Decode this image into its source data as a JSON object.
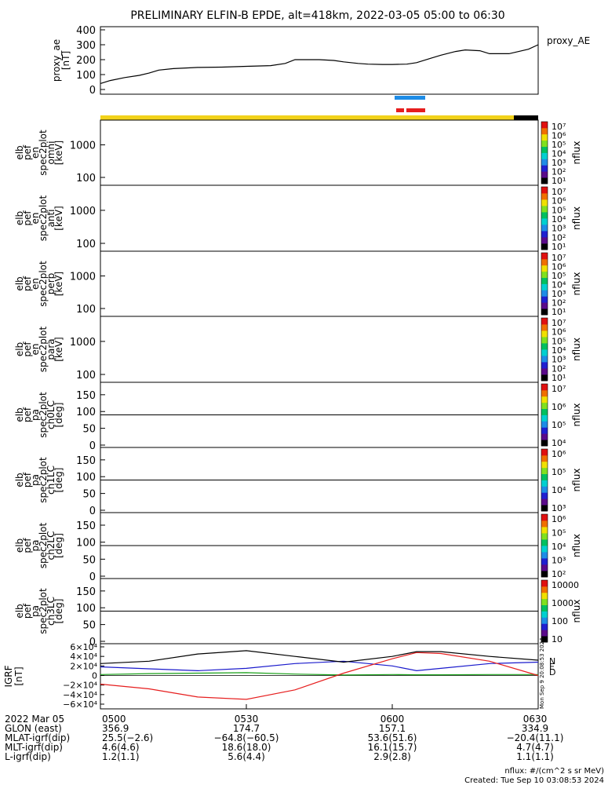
{
  "title": "PRELIMINARY ELFIN-B EPDE, alt=418km, 2022-03-05 05:00 to 06:30",
  "colors": {
    "orbit_bar": "#f2d21a",
    "orbit_bar_end": "#000000",
    "bar_blue": "#1e8ce6",
    "bar_red": "#e61e1e",
    "igrf_N": "#1a1acc",
    "igrf_E": "#18a018",
    "igrf_D": "#e61e1e",
    "igrf_total": "#000000"
  },
  "panels": [
    {
      "id": "ae",
      "ylabel": [
        "proxy_ae",
        "[nT]"
      ],
      "ticks": [
        "400",
        "300",
        "200",
        "100",
        "0"
      ],
      "right_label": "proxy_AE"
    },
    {
      "id": "omni",
      "ylabel": [
        "elb",
        "pef",
        "en",
        "spec2plot",
        "omni",
        "[keV]"
      ],
      "ticks": [
        "1000",
        "100"
      ],
      "cbar_ticks": [
        "10⁷",
        "10⁶",
        "10⁵",
        "10⁴",
        "10³",
        "10²",
        "10¹"
      ],
      "cbar_label": "nflux"
    },
    {
      "id": "anti",
      "ylabel": [
        "elb",
        "pef",
        "en",
        "spec2plot",
        "anti",
        "[keV]"
      ],
      "ticks": [
        "1000",
        "100"
      ],
      "cbar_ticks": [
        "10⁷",
        "10⁶",
        "10⁵",
        "10⁴",
        "10³",
        "10²",
        "10¹"
      ],
      "cbar_label": "nflux"
    },
    {
      "id": "perp",
      "ylabel": [
        "elb",
        "pef",
        "en",
        "spec2plot",
        "perp",
        "[keV]"
      ],
      "ticks": [
        "1000",
        "100"
      ],
      "cbar_ticks": [
        "10⁷",
        "10⁶",
        "10⁵",
        "10⁴",
        "10³",
        "10²",
        "10¹"
      ],
      "cbar_label": "nflux"
    },
    {
      "id": "para",
      "ylabel": [
        "elb",
        "pef",
        "en",
        "spec2plot",
        "para",
        "[keV]"
      ],
      "ticks": [
        "1000",
        "100"
      ],
      "cbar_ticks": [
        "10⁷",
        "10⁶",
        "10⁵",
        "10⁴",
        "10³",
        "10²",
        "10¹"
      ],
      "cbar_label": "nflux"
    },
    {
      "id": "ch0",
      "ylabel": [
        "elb",
        "pef",
        "pa",
        "spec2plot",
        "ch0LC",
        "[deg]"
      ],
      "ticks": [
        "150",
        "100",
        "50",
        "0"
      ],
      "cbar_ticks": [
        "10⁷",
        "10⁶",
        "10⁵",
        "10⁴"
      ],
      "cbar_label": "nflux"
    },
    {
      "id": "ch1",
      "ylabel": [
        "elb",
        "pef",
        "pa",
        "spec2plot",
        "ch1LC",
        "[deg]"
      ],
      "ticks": [
        "150",
        "100",
        "50",
        "0"
      ],
      "cbar_ticks": [
        "10⁶",
        "10⁵",
        "10⁴",
        "10³"
      ],
      "cbar_label": "nflux"
    },
    {
      "id": "ch2",
      "ylabel": [
        "elb",
        "pef",
        "pa",
        "spec2plot",
        "ch2LC",
        "[deg]"
      ],
      "ticks": [
        "150",
        "100",
        "50",
        "0"
      ],
      "cbar_ticks": [
        "10⁶",
        "10⁵",
        "10⁴",
        "10³",
        "10²"
      ],
      "cbar_label": "nflux"
    },
    {
      "id": "ch3",
      "ylabel": [
        "elb",
        "pef",
        "pa",
        "spec2plot",
        "ch3LC",
        "[deg]"
      ],
      "ticks": [
        "150",
        "100",
        "50",
        "0"
      ],
      "cbar_ticks": [
        "10000",
        "1000",
        "100",
        "10"
      ],
      "cbar_label": "nflux"
    },
    {
      "id": "igrf",
      "ylabel": [
        "IGRF",
        "[nT]"
      ],
      "ticks": [
        "6×10⁴",
        "4×10⁴",
        "2×10⁴",
        "0",
        "−2×10⁴",
        "−4×10⁴",
        "−6×10⁴"
      ],
      "legend": [
        "N",
        "E",
        "D"
      ]
    }
  ],
  "chart_data": [
    {
      "type": "line",
      "name": "proxy_ae",
      "ylabel": "proxy_ae [nT]",
      "ylim": [
        0,
        400
      ],
      "x": [
        "05:00",
        "05:02",
        "05:05",
        "05:08",
        "05:10",
        "05:12",
        "05:15",
        "05:18",
        "05:20",
        "05:25",
        "05:30",
        "05:35",
        "05:38",
        "05:40",
        "05:45",
        "05:48",
        "05:50",
        "05:53",
        "05:55",
        "05:58",
        "06:00",
        "06:03",
        "06:05",
        "06:08",
        "06:10",
        "06:13",
        "06:15",
        "06:18",
        "06:20",
        "06:24",
        "06:26",
        "06:28",
        "06:30"
      ],
      "values": [
        40,
        60,
        80,
        95,
        110,
        130,
        140,
        145,
        148,
        150,
        155,
        160,
        175,
        200,
        200,
        195,
        185,
        175,
        170,
        168,
        168,
        170,
        180,
        210,
        230,
        255,
        265,
        260,
        240,
        240,
        255,
        270,
        300
      ]
    },
    {
      "type": "line",
      "name": "IGRF",
      "ylabel": "IGRF [nT]",
      "ylim": [
        -60000,
        60000
      ],
      "x": [
        "05:00",
        "05:10",
        "05:20",
        "05:30",
        "05:40",
        "05:50",
        "06:00",
        "06:05",
        "06:10",
        "06:20",
        "06:30"
      ],
      "series": [
        {
          "name": "N",
          "values": [
            18000,
            14000,
            10000,
            15000,
            25000,
            30000,
            20000,
            10000,
            15000,
            25000,
            28000
          ]
        },
        {
          "name": "E",
          "values": [
            2000,
            4000,
            5000,
            6000,
            3000,
            1000,
            2000,
            1500,
            1500,
            2000,
            2000
          ]
        },
        {
          "name": "D",
          "values": [
            -18000,
            -28000,
            -45000,
            -50000,
            -30000,
            5000,
            35000,
            48000,
            46000,
            30000,
            0
          ]
        },
        {
          "name": "total",
          "values": [
            25000,
            30000,
            45000,
            52000,
            40000,
            28000,
            40000,
            50000,
            50000,
            40000,
            32000
          ]
        }
      ]
    }
  ],
  "heatmaps_note_free": true,
  "xaxis": {
    "ticks": [
      "0500",
      "0530",
      "0600",
      "0630"
    ],
    "rows": [
      {
        "label": "2022 Mar 05",
        "values": [
          "0500",
          "0530",
          "0600",
          "0630"
        ]
      },
      {
        "label": "GLON (east)",
        "values": [
          "356.9",
          "174.7",
          "157.1",
          "334.9"
        ]
      },
      {
        "label": "MLAT-igrf(dip)",
        "values": [
          "25.5(−2.6)",
          "−64.8(−60.5)",
          "53.6(51.6)",
          "−20.4(11.1)"
        ]
      },
      {
        "label": "MLT-igrf(dip)",
        "values": [
          "4.6(4.6)",
          "18.6(18.0)",
          "16.1(15.7)",
          "4.7(4.7)"
        ]
      },
      {
        "label": "L-igrf(dip)",
        "values": [
          "1.2(1.1)",
          "5.6(4.4)",
          "2.9(2.8)",
          "1.1(1.1)"
        ]
      }
    ]
  },
  "footer": {
    "units": "nflux: #/(cm^2 s sr MeV)",
    "created": "Created: Tue Sep 10 03:08:53 2024",
    "stamp": "Mon Sep 9 20:08:53 2024"
  }
}
